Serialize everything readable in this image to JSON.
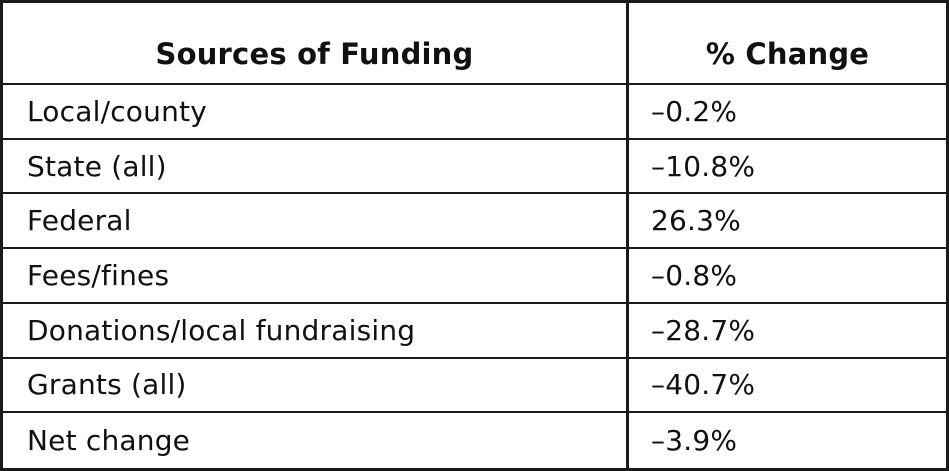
{
  "table": {
    "header": [
      "Sources of Funding",
      "% Change"
    ],
    "rows": [
      [
        "Local/county",
        "–0.2%"
      ],
      [
        "State (all)",
        "–10.8%"
      ],
      [
        "Federal",
        "26.3%"
      ],
      [
        "Fees/fines",
        "–0.8%"
      ],
      [
        "Donations/local fundraising",
        "–28.7%"
      ],
      [
        "Grants (all)",
        "–40.7%"
      ],
      [
        "Net change",
        "–3.9%"
      ]
    ]
  }
}
